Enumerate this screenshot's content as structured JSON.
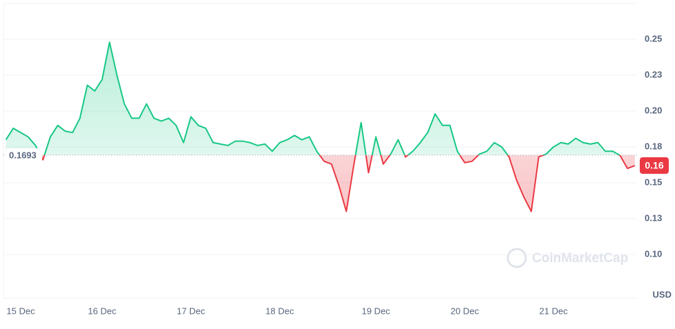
{
  "chart_data": {
    "type": "line",
    "categories": [
      null,
      null,
      "15 Dec",
      null,
      null,
      null,
      null,
      null,
      null,
      null,
      null,
      null,
      null,
      "16 Dec",
      null,
      null,
      null,
      null,
      null,
      null,
      null,
      null,
      null,
      null,
      null,
      "17 Dec",
      null,
      null,
      null,
      null,
      null,
      null,
      null,
      null,
      null,
      null,
      null,
      "18 Dec",
      null,
      null,
      null,
      null,
      null,
      null,
      null,
      null,
      null,
      null,
      null,
      null,
      "19 Dec",
      null,
      null,
      null,
      null,
      null,
      null,
      null,
      null,
      null,
      null,
      null,
      "20 Dec",
      null,
      null,
      null,
      null,
      null,
      null,
      null,
      null,
      null,
      null,
      null,
      "21 Dec",
      null,
      null,
      null,
      null,
      null,
      null,
      null,
      null,
      null,
      null,
      null
    ],
    "values": [
      0.18,
      0.188,
      0.185,
      0.182,
      0.176,
      0.166,
      0.182,
      0.19,
      0.186,
      0.185,
      0.195,
      0.218,
      0.214,
      0.222,
      0.248,
      0.225,
      0.205,
      0.195,
      0.195,
      0.205,
      0.195,
      0.193,
      0.195,
      0.19,
      0.178,
      0.196,
      0.19,
      0.188,
      0.178,
      0.177,
      0.176,
      0.179,
      0.179,
      0.178,
      0.176,
      0.177,
      0.172,
      0.178,
      0.18,
      0.183,
      0.18,
      0.182,
      0.172,
      0.165,
      0.163,
      0.148,
      0.13,
      0.162,
      0.192,
      0.157,
      0.182,
      0.163,
      0.17,
      0.18,
      0.168,
      0.172,
      0.178,
      0.185,
      0.198,
      0.19,
      0.19,
      0.172,
      0.164,
      0.165,
      0.17,
      0.172,
      0.178,
      0.175,
      0.168,
      0.152,
      0.14,
      0.13,
      0.168,
      0.17,
      0.175,
      0.178,
      0.177,
      0.181,
      0.178,
      0.177,
      0.178,
      0.172,
      0.172,
      0.169,
      0.16,
      0.162
    ],
    "baseline": 0.1693,
    "baseline_label": "0.1693",
    "last_value_label": "0.16",
    "color_up": "#16c784",
    "color_down": "#ea3943",
    "ylim": [
      0.07,
      0.275
    ],
    "yticks": [
      {
        "value": 0.1,
        "label": "0.10"
      },
      {
        "value": 0.125,
        "label": "0.13"
      },
      {
        "value": 0.15,
        "label": "0.15"
      },
      {
        "value": 0.175,
        "label": "0.18"
      },
      {
        "value": 0.2,
        "label": "0.20"
      },
      {
        "value": 0.225,
        "label": "0.23"
      },
      {
        "value": 0.25,
        "label": "0.25"
      }
    ],
    "grid": true,
    "unit_label": "USD",
    "watermark": "CoinMarketCap"
  }
}
